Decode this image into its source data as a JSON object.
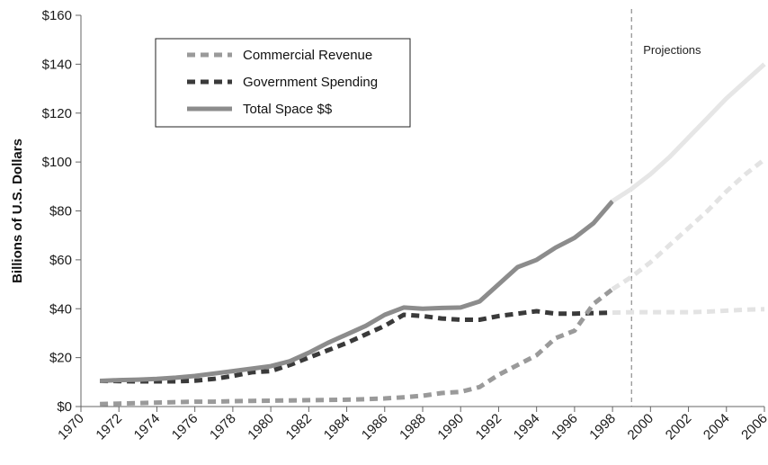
{
  "chart_data": {
    "type": "line",
    "title": "",
    "xlabel": "",
    "ylabel": "Billions of U.S. Dollars",
    "xlim": [
      1970,
      2006
    ],
    "ylim": [
      0,
      160
    ],
    "xticks": [
      "1970",
      "1972",
      "1974",
      "1976",
      "1978",
      "1980",
      "1982",
      "1984",
      "1986",
      "1988",
      "1990",
      "1992",
      "1994",
      "1996",
      "1998",
      "2000",
      "2002",
      "2004",
      "2006"
    ],
    "yticks": [
      "$0",
      "$20",
      "$40",
      "$60",
      "$80",
      "$100",
      "$120",
      "$140",
      "$160"
    ],
    "grid": false,
    "legend_position": "top-left",
    "projection_start": 1999,
    "annotation": "Projections",
    "series": [
      {
        "name": "Commercial Revenue",
        "style": "dashed",
        "color": "#9a9a9a",
        "projection_color": "#e3e3e3",
        "x": [
          1971,
          1972,
          1973,
          1974,
          1975,
          1976,
          1977,
          1978,
          1979,
          1980,
          1981,
          1982,
          1983,
          1984,
          1985,
          1986,
          1987,
          1988,
          1989,
          1990,
          1991,
          1992,
          1993,
          1994,
          1995,
          1996,
          1997,
          1998,
          1999,
          2000,
          2001,
          2002,
          2003,
          2004,
          2005,
          2006
        ],
        "values": [
          1,
          1.2,
          1.4,
          1.6,
          1.8,
          2,
          2,
          2.2,
          2.3,
          2.4,
          2.5,
          2.6,
          2.7,
          2.8,
          3,
          3.3,
          3.8,
          4.4,
          5.5,
          6,
          8,
          13,
          17,
          21,
          28,
          31,
          42,
          48,
          53,
          59,
          66,
          73,
          80,
          88,
          95,
          101
        ]
      },
      {
        "name": "Government Spending",
        "style": "dashed",
        "color": "#3a3a3a",
        "projection_color": "#e3e3e3",
        "x": [
          1971,
          1972,
          1973,
          1974,
          1975,
          1976,
          1977,
          1978,
          1979,
          1980,
          1981,
          1982,
          1983,
          1984,
          1985,
          1986,
          1987,
          1988,
          1989,
          1990,
          1991,
          1992,
          1993,
          1994,
          1995,
          1996,
          1997,
          1998,
          1999,
          2000,
          2001,
          2002,
          2003,
          2004,
          2005,
          2006
        ],
        "values": [
          10.5,
          10.4,
          10.3,
          10.3,
          10.3,
          10.6,
          11.3,
          12.5,
          14,
          14.5,
          17,
          20,
          23,
          26,
          29.5,
          33,
          37.5,
          37,
          36,
          35.5,
          35.5,
          37,
          38,
          39,
          38,
          38,
          38.2,
          38.4,
          38.6,
          38.6,
          38.6,
          38.6,
          38.8,
          39.2,
          39.6,
          39.8
        ]
      },
      {
        "name": "Total Space $$",
        "style": "solid",
        "color": "#8c8c8c",
        "projection_color": "#e6e6e6",
        "x": [
          1971,
          1972,
          1973,
          1974,
          1975,
          1976,
          1977,
          1978,
          1979,
          1980,
          1981,
          1982,
          1983,
          1984,
          1985,
          1986,
          1987,
          1988,
          1989,
          1990,
          1991,
          1992,
          1993,
          1994,
          1995,
          1996,
          1997,
          1998,
          1999,
          2000,
          2001,
          2002,
          2003,
          2004,
          2005,
          2006
        ],
        "values": [
          10.5,
          10.8,
          11,
          11.3,
          11.8,
          12.5,
          13.5,
          14.5,
          15.5,
          16.5,
          18.5,
          22,
          26,
          29.5,
          33,
          37.5,
          40.5,
          40,
          40.3,
          40.5,
          43,
          50,
          57,
          60,
          65,
          69,
          75,
          84,
          89,
          95,
          102,
          110,
          118,
          126,
          133,
          140
        ]
      }
    ]
  }
}
